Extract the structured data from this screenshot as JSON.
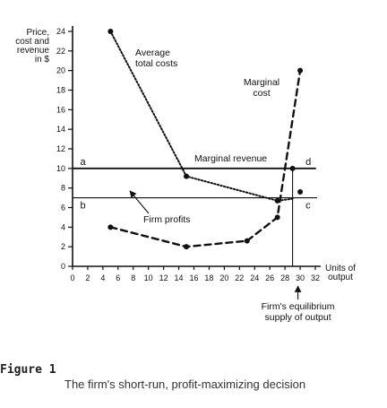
{
  "chart_data": {
    "type": "line",
    "ylabel_lines": [
      "Price,",
      "cost and",
      "revenue",
      "in $"
    ],
    "xlabel_lines": [
      "Units of",
      "output"
    ],
    "xlim": [
      0,
      32
    ],
    "ylim": [
      0,
      24
    ],
    "x_ticks": [
      0,
      2,
      4,
      6,
      8,
      10,
      12,
      14,
      16,
      18,
      20,
      22,
      24,
      26,
      28,
      30,
      32
    ],
    "y_ticks": [
      0,
      2,
      4,
      6,
      8,
      10,
      12,
      14,
      16,
      18,
      20,
      22,
      24
    ],
    "series": [
      {
        "name": "Average total costs",
        "style": "dotted",
        "x": [
          5,
          15,
          27,
          29
        ],
        "y": [
          24,
          9.2,
          6.7,
          6.9
        ],
        "markers": [
          true,
          true,
          true,
          false
        ]
      },
      {
        "name": "Marginal cost",
        "style": "dashed",
        "x": [
          5,
          15,
          23,
          27,
          30
        ],
        "y": [
          4,
          2,
          2.6,
          5,
          20
        ],
        "markers": [
          true,
          true,
          true,
          true,
          true
        ]
      },
      {
        "name": "Marginal revenue",
        "style": "solid",
        "x": [
          0,
          32
        ],
        "y": [
          10,
          10
        ],
        "markers": [
          false,
          false
        ]
      }
    ],
    "series_labels": [
      {
        "lines": [
          "Average",
          "total costs"
        ]
      },
      {
        "lines": [
          "Marginal",
          "cost"
        ]
      },
      {
        "lines": [
          "Marginal revenue"
        ]
      }
    ],
    "extra_points": [
      {
        "x": 30,
        "y": 7.6
      }
    ],
    "reference_lines": {
      "price_b": 7,
      "equilibrium_x": 29
    },
    "point_labels": [
      {
        "text": "a",
        "x": 0.3,
        "y": 10
      },
      {
        "text": "b",
        "x": 0.3,
        "y": 7
      },
      {
        "text": "c",
        "x": 30,
        "y": 7
      },
      {
        "text": "d",
        "x": 30,
        "y": 10
      }
    ],
    "annotations": [
      {
        "lines": [
          "Firm profits"
        ]
      },
      {
        "lines": [
          "Firm's equilibrium",
          "supply of output"
        ]
      }
    ]
  },
  "caption": {
    "figure_label": "Figure 1",
    "text": "The firm's short-run, profit-maximizing decision"
  }
}
